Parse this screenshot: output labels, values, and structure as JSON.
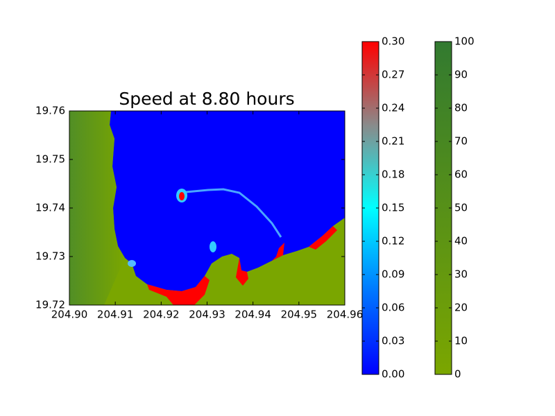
{
  "chart_data": {
    "type": "heatmap",
    "title": "Speed at 8.80 hours",
    "xlim": [
      204.9,
      204.96
    ],
    "xticks": [
      {
        "value": 204.9,
        "label": "204.90"
      },
      204.91,
      204.92,
      204.93,
      204.94,
      204.95,
      204.96
    ],
    "ylim": [
      19.72,
      19.76
    ],
    "yticks": [
      19.72,
      19.73,
      19.74,
      19.75,
      19.76
    ],
    "colorbars": [
      {
        "lim": [
          0,
          0.3
        ],
        "ticks": [
          {
            "value": 0,
            "label": "0.00"
          },
          0.03,
          0.06,
          0.09,
          0.12,
          0.15,
          0.18,
          0.21,
          0.24,
          0.27,
          {
            "value": 0.3,
            "label": "0.30"
          }
        ],
        "colors": [
          "#0000ff",
          "#0077ff",
          "#00ffff",
          "#8a8a8a",
          "#ff0000"
        ]
      },
      {
        "lim": [
          0,
          100
        ],
        "ticks": [
          0,
          10,
          20,
          30,
          40,
          50,
          60,
          70,
          80,
          90,
          100
        ],
        "colors": [
          "#7ba600",
          "#327a30"
        ]
      }
    ]
  }
}
